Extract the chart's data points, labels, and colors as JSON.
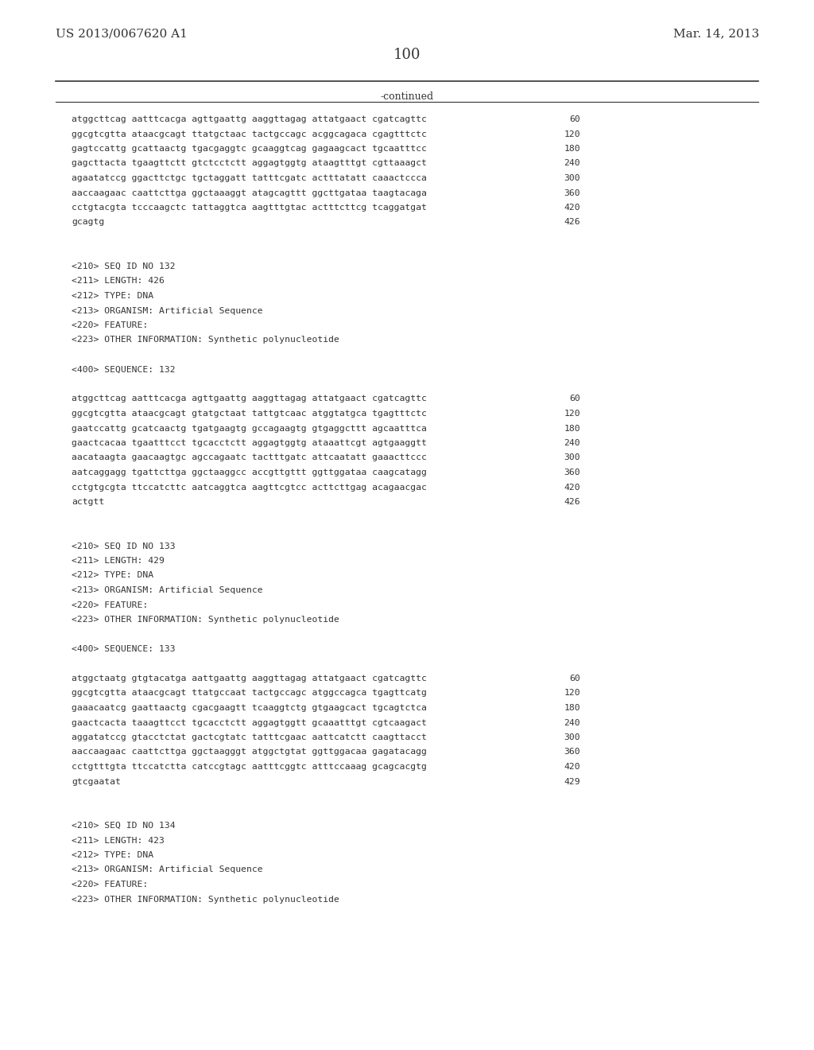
{
  "page_left_text": "US 2013/0067620 A1",
  "page_right_text": "Mar. 14, 2013",
  "page_number": "100",
  "continued_text": "-continued",
  "background_color": "#ffffff",
  "text_color": "#333333",
  "lines": [
    {
      "text": "atggcttcag aatttcacga agttgaattg aaggttagag attatgaact cgatcagttc",
      "num": "60",
      "type": "seq"
    },
    {
      "text": "ggcgtcgtta ataacgcagt ttatgctaac tactgccagc acggcagaca cgagtttctc",
      "num": "120",
      "type": "seq"
    },
    {
      "text": "gagtccattg gcattaactg tgacgaggtc gcaaggtcag gagaagcact tgcaatttcc",
      "num": "180",
      "type": "seq"
    },
    {
      "text": "gagcttacta tgaagttctt gtctcctctt aggagtggtg ataagtttgt cgttaaagct",
      "num": "240",
      "type": "seq"
    },
    {
      "text": "agaatatccg ggacttctgc tgctaggatt tatttcgatc actttatatt caaactccca",
      "num": "300",
      "type": "seq"
    },
    {
      "text": "aaccaagaac caattcttga ggctaaaggt atagcagttt ggcttgataa taagtacaga",
      "num": "360",
      "type": "seq"
    },
    {
      "text": "cctgtacgta tcccaagctc tattaggtca aagtttgtac actttcttcg tcaggatgat",
      "num": "420",
      "type": "seq"
    },
    {
      "text": "gcagtg",
      "num": "426",
      "type": "seq"
    },
    {
      "text": "",
      "num": "",
      "type": "blank"
    },
    {
      "text": "",
      "num": "",
      "type": "blank"
    },
    {
      "text": "<210> SEQ ID NO 132",
      "num": "",
      "type": "meta"
    },
    {
      "text": "<211> LENGTH: 426",
      "num": "",
      "type": "meta"
    },
    {
      "text": "<212> TYPE: DNA",
      "num": "",
      "type": "meta"
    },
    {
      "text": "<213> ORGANISM: Artificial Sequence",
      "num": "",
      "type": "meta"
    },
    {
      "text": "<220> FEATURE:",
      "num": "",
      "type": "meta"
    },
    {
      "text": "<223> OTHER INFORMATION: Synthetic polynucleotide",
      "num": "",
      "type": "meta"
    },
    {
      "text": "",
      "num": "",
      "type": "blank"
    },
    {
      "text": "<400> SEQUENCE: 132",
      "num": "",
      "type": "meta"
    },
    {
      "text": "",
      "num": "",
      "type": "blank"
    },
    {
      "text": "atggcttcag aatttcacga agttgaattg aaggttagag attatgaact cgatcagttc",
      "num": "60",
      "type": "seq"
    },
    {
      "text": "ggcgtcgtta ataacgcagt gtatgctaat tattgtcaac atggtatgca tgagtttctc",
      "num": "120",
      "type": "seq"
    },
    {
      "text": "gaatccattg gcatcaactg tgatgaagtg gccagaagtg gtgaggcttt agcaatttca",
      "num": "180",
      "type": "seq"
    },
    {
      "text": "gaactcacaa tgaatttcct tgcacctctt aggagtggtg ataaattcgt agtgaaggtt",
      "num": "240",
      "type": "seq"
    },
    {
      "text": "aacataagta gaacaagtgc agccagaatc tactttgatc attcaatatt gaaacttccc",
      "num": "300",
      "type": "seq"
    },
    {
      "text": "aatcaggagg tgattcttga ggctaaggcc accgttgttt ggttggataa caagcatagg",
      "num": "360",
      "type": "seq"
    },
    {
      "text": "cctgtgcgta ttccatcttc aatcaggtca aagttcgtcc acttcttgag acagaacgac",
      "num": "420",
      "type": "seq"
    },
    {
      "text": "actgtt",
      "num": "426",
      "type": "seq"
    },
    {
      "text": "",
      "num": "",
      "type": "blank"
    },
    {
      "text": "",
      "num": "",
      "type": "blank"
    },
    {
      "text": "<210> SEQ ID NO 133",
      "num": "",
      "type": "meta"
    },
    {
      "text": "<211> LENGTH: 429",
      "num": "",
      "type": "meta"
    },
    {
      "text": "<212> TYPE: DNA",
      "num": "",
      "type": "meta"
    },
    {
      "text": "<213> ORGANISM: Artificial Sequence",
      "num": "",
      "type": "meta"
    },
    {
      "text": "<220> FEATURE:",
      "num": "",
      "type": "meta"
    },
    {
      "text": "<223> OTHER INFORMATION: Synthetic polynucleotide",
      "num": "",
      "type": "meta"
    },
    {
      "text": "",
      "num": "",
      "type": "blank"
    },
    {
      "text": "<400> SEQUENCE: 133",
      "num": "",
      "type": "meta"
    },
    {
      "text": "",
      "num": "",
      "type": "blank"
    },
    {
      "text": "atggctaatg gtgtacatga aattgaattg aaggttagag attatgaact cgatcagttc",
      "num": "60",
      "type": "seq"
    },
    {
      "text": "ggcgtcgtta ataacgcagt ttatgccaat tactgccagc atggccagca tgagttcatg",
      "num": "120",
      "type": "seq"
    },
    {
      "text": "gaaacaatcg gaattaactg cgacgaagtt tcaaggtctg gtgaagcact tgcagtctca",
      "num": "180",
      "type": "seq"
    },
    {
      "text": "gaactcacta taaagttcct tgcacctctt aggagtggtt gcaaatttgt cgtcaagact",
      "num": "240",
      "type": "seq"
    },
    {
      "text": "aggatatccg gtacctctat gactcgtatc tatttcgaac aattcatctt caagttacct",
      "num": "300",
      "type": "seq"
    },
    {
      "text": "aaccaagaac caattcttga ggctaagggt atggctgtat ggttggacaa gagatacagg",
      "num": "360",
      "type": "seq"
    },
    {
      "text": "cctgtttgta ttccatctta catccgtagc aatttcggtc atttccaaag gcagcacgtg",
      "num": "420",
      "type": "seq"
    },
    {
      "text": "gtcgaatat",
      "num": "429",
      "type": "seq"
    },
    {
      "text": "",
      "num": "",
      "type": "blank"
    },
    {
      "text": "",
      "num": "",
      "type": "blank"
    },
    {
      "text": "<210> SEQ ID NO 134",
      "num": "",
      "type": "meta"
    },
    {
      "text": "<211> LENGTH: 423",
      "num": "",
      "type": "meta"
    },
    {
      "text": "<212> TYPE: DNA",
      "num": "",
      "type": "meta"
    },
    {
      "text": "<213> ORGANISM: Artificial Sequence",
      "num": "",
      "type": "meta"
    },
    {
      "text": "<220> FEATURE:",
      "num": "",
      "type": "meta"
    },
    {
      "text": "<223> OTHER INFORMATION: Synthetic polynucleotide",
      "num": "",
      "type": "meta"
    }
  ]
}
